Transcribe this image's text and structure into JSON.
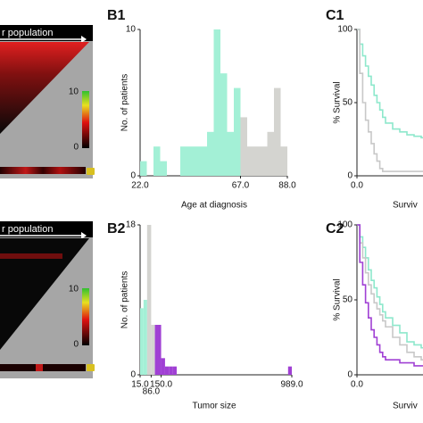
{
  "heatmaps": [
    {
      "header": "r population",
      "scale_max": "10",
      "scale_min": "0"
    },
    {
      "header": "r population",
      "scale_max": "10",
      "scale_min": "0"
    }
  ],
  "chart_data": [
    {
      "type": "histogram",
      "title": "B1",
      "xlabel": "Age  at diagnosis",
      "ylabel": "No. of patients",
      "bins": [
        22,
        25,
        28,
        31,
        34,
        37,
        40,
        43,
        46,
        49,
        52,
        55,
        58,
        61,
        64,
        67,
        70,
        73,
        76,
        79,
        82,
        85,
        88
      ],
      "values": [
        1,
        0,
        2,
        1,
        0,
        0,
        2,
        2,
        2,
        2,
        3,
        10,
        7,
        3,
        6,
        4,
        2,
        2,
        2,
        3,
        6,
        2
      ],
      "colors": [
        "#a3f0d6",
        "#a3f0d6",
        "#a3f0d6",
        "#a3f0d6",
        "#a3f0d6",
        "#a3f0d6",
        "#a3f0d6",
        "#a3f0d6",
        "#a3f0d6",
        "#a3f0d6",
        "#a3f0d6",
        "#a3f0d6",
        "#a3f0d6",
        "#a3f0d6",
        "#a3f0d6",
        "#d4d4d0",
        "#d4d4d0",
        "#d4d4d0",
        "#d4d4d0",
        "#d4d4d0",
        "#d4d4d0",
        "#d4d4d0"
      ],
      "xlim": [
        22,
        88
      ],
      "ylim": [
        0,
        10
      ],
      "xticks": [
        {
          "value": 22,
          "label": "22.0"
        },
        {
          "value": 67,
          "label": "67.0"
        },
        {
          "value": 88,
          "label": "88.0"
        }
      ],
      "yticks": [
        0,
        10
      ]
    },
    {
      "type": "histogram",
      "title": "B2",
      "xlabel": "Tumor size",
      "ylabel": "No. of patients",
      "bins": [
        15,
        37,
        60,
        86,
        110,
        150,
        175,
        200,
        225,
        250,
        965,
        989
      ],
      "values": [
        8,
        9,
        18,
        6,
        6,
        2,
        1,
        1,
        1,
        0,
        1
      ],
      "colors": [
        "#a3f0d6",
        "#a3f0d6",
        "#d4d4d0",
        "#d4d4d0",
        "#a040d4",
        "#a040d4",
        "#a040d4",
        "#a040d4",
        "#a040d4",
        "#a040d4",
        "#a040d4"
      ],
      "xlim": [
        15,
        989
      ],
      "ylim": [
        0,
        18
      ],
      "xticks": [
        {
          "value": 15,
          "label": "15.0"
        },
        {
          "value": 86,
          "label": "86.0"
        },
        {
          "value": 150,
          "label": "150.0"
        },
        {
          "value": 989,
          "label": "989.0"
        }
      ],
      "yticks": [
        0,
        18
      ]
    },
    {
      "type": "line",
      "drawstyle": "steps-post",
      "title": "C1",
      "xlabel": "Surviv",
      "ylabel": "% Survival",
      "x": [
        0,
        2,
        4,
        6,
        8,
        10,
        12,
        14,
        16,
        18,
        20,
        25,
        30,
        35,
        40,
        45,
        50,
        55,
        60
      ],
      "series": [
        {
          "color": "#8ee8cc",
          "values": [
            100,
            90,
            82,
            75,
            68,
            62,
            55,
            50,
            45,
            40,
            36,
            32,
            30,
            28,
            27,
            26,
            25,
            24,
            24
          ]
        },
        {
          "color": "#c8c8c8",
          "values": [
            100,
            70,
            50,
            38,
            30,
            22,
            15,
            10,
            5,
            3,
            3,
            3,
            3,
            3,
            3,
            3,
            3,
            3,
            3
          ]
        }
      ],
      "xlim": [
        0,
        100
      ],
      "ylim": [
        0,
        100
      ],
      "xticks": [
        {
          "value": 0,
          "label": "0.0"
        }
      ],
      "yticks": [
        0,
        50,
        100
      ]
    },
    {
      "type": "line",
      "drawstyle": "steps-post",
      "title": "C2",
      "xlabel": "Surviv",
      "ylabel": "% Survival",
      "x": [
        0,
        2,
        4,
        6,
        8,
        10,
        12,
        14,
        16,
        18,
        20,
        25,
        30,
        35,
        40,
        45,
        50,
        55,
        60
      ],
      "series": [
        {
          "color": "#8ee8cc",
          "values": [
            100,
            92,
            85,
            78,
            70,
            63,
            58,
            52,
            47,
            42,
            38,
            33,
            28,
            22,
            20,
            18,
            16,
            15,
            15
          ]
        },
        {
          "color": "#c8c8c8",
          "values": [
            100,
            88,
            78,
            68,
            60,
            54,
            48,
            44,
            40,
            36,
            32,
            25,
            20,
            15,
            12,
            10,
            8,
            6,
            5
          ]
        },
        {
          "color": "#a040d4",
          "values": [
            100,
            75,
            60,
            48,
            38,
            30,
            25,
            20,
            15,
            12,
            10,
            10,
            8,
            8,
            6,
            6,
            6,
            6,
            6
          ]
        }
      ],
      "xlim": [
        0,
        100
      ],
      "ylim": [
        0,
        100
      ],
      "xticks": [
        {
          "value": 0,
          "label": "0.0"
        }
      ],
      "yticks": [
        0,
        50,
        100
      ]
    }
  ]
}
